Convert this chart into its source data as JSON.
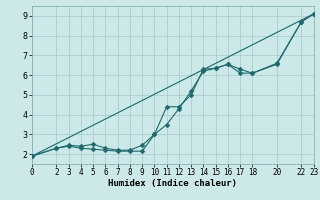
{
  "title": "",
  "xlabel": "Humidex (Indice chaleur)",
  "ylabel": "",
  "bg_color": "#cce8e8",
  "grid_color": "#aacfcf",
  "line_color": "#1a6b6b",
  "xlim": [
    0,
    23
  ],
  "ylim": [
    1.5,
    9.5
  ],
  "xticks": [
    0,
    2,
    3,
    4,
    5,
    6,
    7,
    8,
    9,
    10,
    11,
    12,
    13,
    14,
    15,
    16,
    17,
    18,
    20,
    22,
    23
  ],
  "yticks": [
    2,
    3,
    4,
    5,
    6,
    7,
    8,
    9
  ],
  "line1_x": [
    0,
    2,
    3,
    4,
    5,
    6,
    7,
    8,
    9,
    10,
    11,
    12,
    13,
    14,
    15,
    16,
    17,
    18,
    20,
    22,
    23
  ],
  "line1_y": [
    1.9,
    2.3,
    2.4,
    2.3,
    2.25,
    2.2,
    2.15,
    2.15,
    2.15,
    3.0,
    3.5,
    4.3,
    5.2,
    6.2,
    6.35,
    6.55,
    6.3,
    6.1,
    6.6,
    8.7,
    9.1
  ],
  "line2_x": [
    0,
    2,
    3,
    4,
    5,
    6,
    7,
    8,
    9,
    10,
    11,
    12,
    13,
    14,
    15,
    16,
    17,
    18,
    20,
    22,
    23
  ],
  "line2_y": [
    1.9,
    2.3,
    2.45,
    2.4,
    2.5,
    2.3,
    2.2,
    2.2,
    2.45,
    3.0,
    4.4,
    4.4,
    5.0,
    6.3,
    6.35,
    6.55,
    6.1,
    6.1,
    6.55,
    8.7,
    9.1
  ],
  "line3_x": [
    0,
    23
  ],
  "line3_y": [
    1.9,
    9.1
  ]
}
